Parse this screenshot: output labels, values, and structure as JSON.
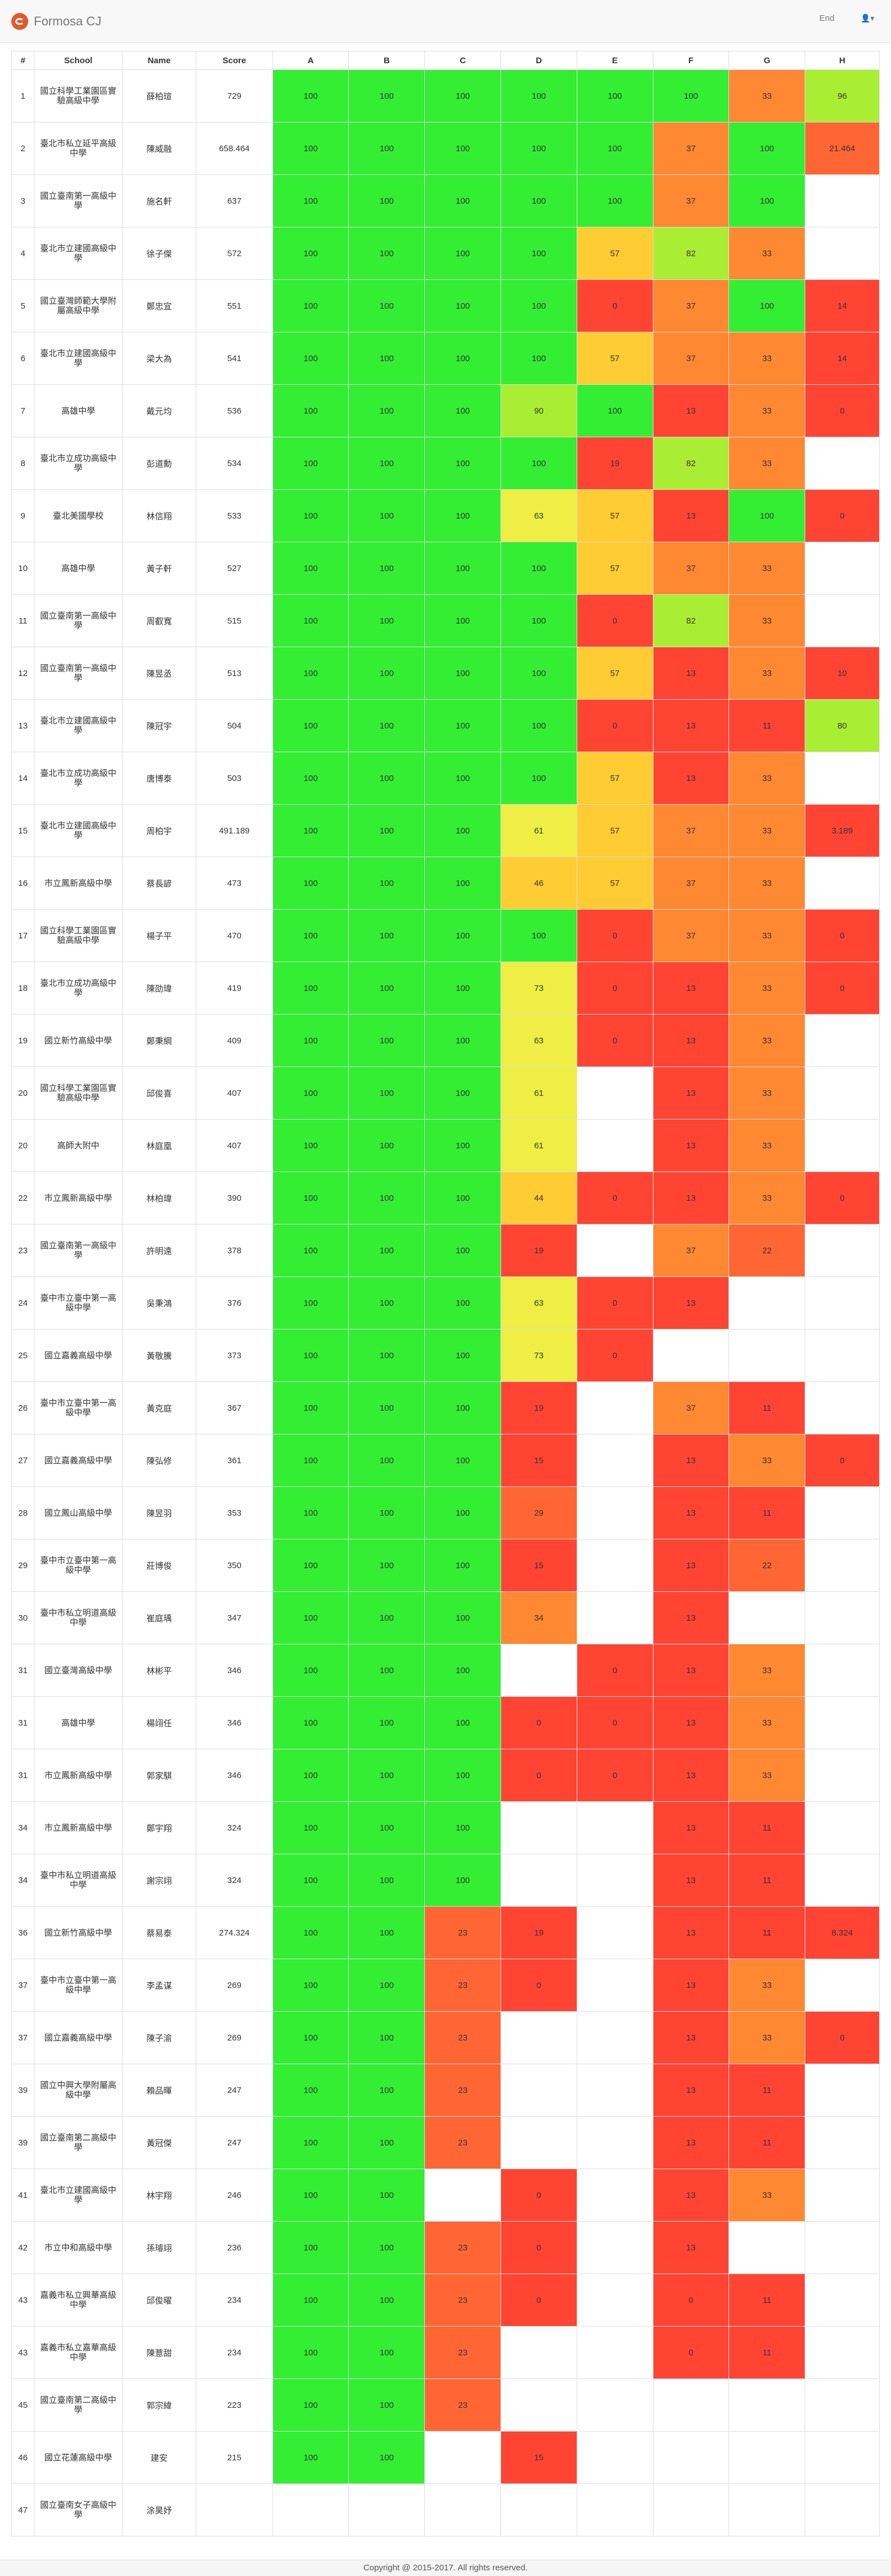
{
  "app": {
    "title": "Formosa CJ",
    "end_label": "End",
    "user_menu_icon": "user-icon"
  },
  "table": {
    "headers": [
      "#",
      "School",
      "Name",
      "Score",
      "A",
      "B",
      "C",
      "D",
      "E",
      "F",
      "G",
      "H"
    ],
    "rows": [
      {
        "rank": "1",
        "school": "國立科學工業園區實驗高級中學",
        "name": "薛柏瑄",
        "score": "729",
        "cells": [
          "100",
          "100",
          "100",
          "100",
          "100",
          "100",
          "33",
          "96"
        ]
      },
      {
        "rank": "2",
        "school": "臺北市私立延平高級中學",
        "name": "陳威融",
        "score": "658.464",
        "cells": [
          "100",
          "100",
          "100",
          "100",
          "100",
          "37",
          "100",
          "21.464"
        ]
      },
      {
        "rank": "3",
        "school": "國立臺南第一高級中學",
        "name": "施名軒",
        "score": "637",
        "cells": [
          "100",
          "100",
          "100",
          "100",
          "100",
          "37",
          "100",
          ""
        ]
      },
      {
        "rank": "4",
        "school": "臺北市立建國高級中學",
        "name": "徐子傑",
        "score": "572",
        "cells": [
          "100",
          "100",
          "100",
          "100",
          "57",
          "82",
          "33",
          ""
        ]
      },
      {
        "rank": "5",
        "school": "國立臺灣師範大學附屬高級中學",
        "name": "鄭忠宜",
        "score": "551",
        "cells": [
          "100",
          "100",
          "100",
          "100",
          "0",
          "37",
          "100",
          "14"
        ]
      },
      {
        "rank": "6",
        "school": "臺北市立建國高級中學",
        "name": "梁大為",
        "score": "541",
        "cells": [
          "100",
          "100",
          "100",
          "100",
          "57",
          "37",
          "33",
          "14"
        ]
      },
      {
        "rank": "7",
        "school": "高雄中學",
        "name": "戴元均",
        "score": "536",
        "cells": [
          "100",
          "100",
          "100",
          "90",
          "100",
          "13",
          "33",
          "0"
        ]
      },
      {
        "rank": "8",
        "school": "臺北市立成功高級中學",
        "name": "彭道勳",
        "score": "534",
        "cells": [
          "100",
          "100",
          "100",
          "100",
          "19",
          "82",
          "33",
          ""
        ]
      },
      {
        "rank": "9",
        "school": "臺北美國學校",
        "name": "林信翔",
        "score": "533",
        "cells": [
          "100",
          "100",
          "100",
          "63",
          "57",
          "13",
          "100",
          "0"
        ]
      },
      {
        "rank": "10",
        "school": "高雄中學",
        "name": "黃子軒",
        "score": "527",
        "cells": [
          "100",
          "100",
          "100",
          "100",
          "57",
          "37",
          "33",
          ""
        ]
      },
      {
        "rank": "11",
        "school": "國立臺南第一高級中學",
        "name": "周叡寬",
        "score": "515",
        "cells": [
          "100",
          "100",
          "100",
          "100",
          "0",
          "82",
          "33",
          ""
        ]
      },
      {
        "rank": "12",
        "school": "國立臺南第一高級中學",
        "name": "陳昱丞",
        "score": "513",
        "cells": [
          "100",
          "100",
          "100",
          "100",
          "57",
          "13",
          "33",
          "10"
        ]
      },
      {
        "rank": "13",
        "school": "臺北市立建國高級中學",
        "name": "陳冠宇",
        "score": "504",
        "cells": [
          "100",
          "100",
          "100",
          "100",
          "0",
          "13",
          "11",
          "80"
        ]
      },
      {
        "rank": "14",
        "school": "臺北市立成功高級中學",
        "name": "唐博泰",
        "score": "503",
        "cells": [
          "100",
          "100",
          "100",
          "100",
          "57",
          "13",
          "33",
          ""
        ]
      },
      {
        "rank": "15",
        "school": "臺北市立建國高級中學",
        "name": "周柏宇",
        "score": "491.189",
        "cells": [
          "100",
          "100",
          "100",
          "61",
          "57",
          "37",
          "33",
          "3.189"
        ]
      },
      {
        "rank": "16",
        "school": "市立鳳新高級中學",
        "name": "蔡長諺",
        "score": "473",
        "cells": [
          "100",
          "100",
          "100",
          "46",
          "57",
          "37",
          "33",
          ""
        ]
      },
      {
        "rank": "17",
        "school": "國立科學工業園區實驗高級中學",
        "name": "楊子平",
        "score": "470",
        "cells": [
          "100",
          "100",
          "100",
          "100",
          "0",
          "37",
          "33",
          "0"
        ]
      },
      {
        "rank": "18",
        "school": "臺北市立成功高級中學",
        "name": "陳劭瑋",
        "score": "419",
        "cells": [
          "100",
          "100",
          "100",
          "73",
          "0",
          "13",
          "33",
          "0"
        ]
      },
      {
        "rank": "19",
        "school": "國立新竹高級中學",
        "name": "鄭秉綱",
        "score": "409",
        "cells": [
          "100",
          "100",
          "100",
          "63",
          "0",
          "13",
          "33",
          ""
        ]
      },
      {
        "rank": "20",
        "school": "國立科學工業園區實驗高級中學",
        "name": "邱俊喜",
        "score": "407",
        "cells": [
          "100",
          "100",
          "100",
          "61",
          "",
          "13",
          "33",
          ""
        ]
      },
      {
        "rank": "20",
        "school": "高師大附中",
        "name": "林庭凰",
        "score": "407",
        "cells": [
          "100",
          "100",
          "100",
          "61",
          "",
          "13",
          "33",
          ""
        ]
      },
      {
        "rank": "22",
        "school": "市立鳳新高級中學",
        "name": "林柏瑋",
        "score": "390",
        "cells": [
          "100",
          "100",
          "100",
          "44",
          "0",
          "13",
          "33",
          "0"
        ]
      },
      {
        "rank": "23",
        "school": "國立臺南第一高級中學",
        "name": "許明遠",
        "score": "378",
        "cells": [
          "100",
          "100",
          "100",
          "19",
          "",
          "37",
          "22",
          ""
        ]
      },
      {
        "rank": "24",
        "school": "臺中市立臺中第一高級中學",
        "name": "吳秉鴻",
        "score": "376",
        "cells": [
          "100",
          "100",
          "100",
          "63",
          "0",
          "13",
          "",
          ""
        ]
      },
      {
        "rank": "25",
        "school": "國立嘉義高級中學",
        "name": "黃敬騰",
        "score": "373",
        "cells": [
          "100",
          "100",
          "100",
          "73",
          "0",
          "",
          "",
          ""
        ]
      },
      {
        "rank": "26",
        "school": "臺中市立臺中第一高級中學",
        "name": "黃克庭",
        "score": "367",
        "cells": [
          "100",
          "100",
          "100",
          "19",
          "",
          "37",
          "11",
          ""
        ]
      },
      {
        "rank": "27",
        "school": "國立嘉義高級中學",
        "name": "陳弘修",
        "score": "361",
        "cells": [
          "100",
          "100",
          "100",
          "15",
          "",
          "13",
          "33",
          "0"
        ]
      },
      {
        "rank": "28",
        "school": "國立鳳山高級中學",
        "name": "陳昱羽",
        "score": "353",
        "cells": [
          "100",
          "100",
          "100",
          "29",
          "",
          "13",
          "11",
          ""
        ]
      },
      {
        "rank": "29",
        "school": "臺中市立臺中第一高級中學",
        "name": "莊博俊",
        "score": "350",
        "cells": [
          "100",
          "100",
          "100",
          "15",
          "",
          "13",
          "22",
          ""
        ]
      },
      {
        "rank": "30",
        "school": "臺中市私立明道高級中學",
        "name": "崔庭瑀",
        "score": "347",
        "cells": [
          "100",
          "100",
          "100",
          "34",
          "",
          "13",
          "",
          ""
        ]
      },
      {
        "rank": "31",
        "school": "國立臺灣高級中學",
        "name": "林彬平",
        "score": "346",
        "cells": [
          "100",
          "100",
          "100",
          "",
          "0",
          "13",
          "33",
          ""
        ]
      },
      {
        "rank": "31",
        "school": "高雄中學",
        "name": "楊翊任",
        "score": "346",
        "cells": [
          "100",
          "100",
          "100",
          "0",
          "0",
          "13",
          "33",
          ""
        ]
      },
      {
        "rank": "31",
        "school": "市立鳳新高級中學",
        "name": "郭家騏",
        "score": "346",
        "cells": [
          "100",
          "100",
          "100",
          "0",
          "0",
          "13",
          "33",
          ""
        ]
      },
      {
        "rank": "34",
        "school": "市立鳳新高級中學",
        "name": "鄭宇翔",
        "score": "324",
        "cells": [
          "100",
          "100",
          "100",
          "",
          "",
          "13",
          "11",
          ""
        ]
      },
      {
        "rank": "34",
        "school": "臺中市私立明道高級中學",
        "name": "謝宗翊",
        "score": "324",
        "cells": [
          "100",
          "100",
          "100",
          "",
          "",
          "13",
          "11",
          ""
        ]
      },
      {
        "rank": "36",
        "school": "國立新竹高級中學",
        "name": "蔡易泰",
        "score": "274.324",
        "cells": [
          "100",
          "100",
          "23",
          "19",
          "",
          "13",
          "11",
          "8.324"
        ]
      },
      {
        "rank": "37",
        "school": "臺中市立臺中第一高級中學",
        "name": "李孟谋",
        "score": "269",
        "cells": [
          "100",
          "100",
          "23",
          "0",
          "",
          "13",
          "33",
          ""
        ]
      },
      {
        "rank": "37",
        "school": "國立嘉義高級中學",
        "name": "陳子渝",
        "score": "269",
        "cells": [
          "100",
          "100",
          "23",
          "",
          "",
          "13",
          "33",
          "0"
        ]
      },
      {
        "rank": "39",
        "school": "國立中興大學附屬高級中學",
        "name": "賴品暉",
        "score": "247",
        "cells": [
          "100",
          "100",
          "23",
          "",
          "",
          "13",
          "11",
          ""
        ]
      },
      {
        "rank": "39",
        "school": "國立臺南第二高級中學",
        "name": "黃冠傑",
        "score": "247",
        "cells": [
          "100",
          "100",
          "23",
          "",
          "",
          "13",
          "11",
          ""
        ]
      },
      {
        "rank": "41",
        "school": "臺北市立建國高級中學",
        "name": "林宇翔",
        "score": "246",
        "cells": [
          "100",
          "100",
          "",
          "0",
          "",
          "13",
          "33",
          ""
        ]
      },
      {
        "rank": "42",
        "school": "市立中和高級中學",
        "name": "孫璿翊",
        "score": "236",
        "cells": [
          "100",
          "100",
          "23",
          "0",
          "",
          "13",
          "",
          ""
        ]
      },
      {
        "rank": "43",
        "school": "嘉義市私立興華高級中學",
        "name": "邱俊曜",
        "score": "234",
        "cells": [
          "100",
          "100",
          "23",
          "0",
          "",
          "0",
          "11",
          ""
        ]
      },
      {
        "rank": "43",
        "school": "嘉義市私立嘉華高級中學",
        "name": "陳薏甜",
        "score": "234",
        "cells": [
          "100",
          "100",
          "23",
          "",
          "",
          "0",
          "11",
          ""
        ]
      },
      {
        "rank": "45",
        "school": "國立臺南第二高級中學",
        "name": "郭宗緯",
        "score": "223",
        "cells": [
          "100",
          "100",
          "23",
          "",
          "",
          "",
          "",
          ""
        ]
      },
      {
        "rank": "46",
        "school": "國立花蓮高級中學",
        "name": "建安",
        "score": "215",
        "cells": [
          "100",
          "100",
          "",
          "15",
          "",
          "",
          "",
          ""
        ]
      },
      {
        "rank": "47",
        "school": "國立臺南女子高級中學",
        "name": "涂昊妤",
        "score": "",
        "cells": [
          "",
          "",
          "",
          "",
          "",
          "",
          "",
          ""
        ]
      }
    ]
  },
  "footer": {
    "text": "Copyright @ 2015-2017. All rights reserved."
  },
  "colors": {
    "green": "#33ee33",
    "light_green": "#aaee33",
    "yellow": "#eeee44",
    "amber": "#ffcc33",
    "orange": "#ff8833",
    "dark_orange": "#ff6633",
    "red": "#ff4433"
  }
}
